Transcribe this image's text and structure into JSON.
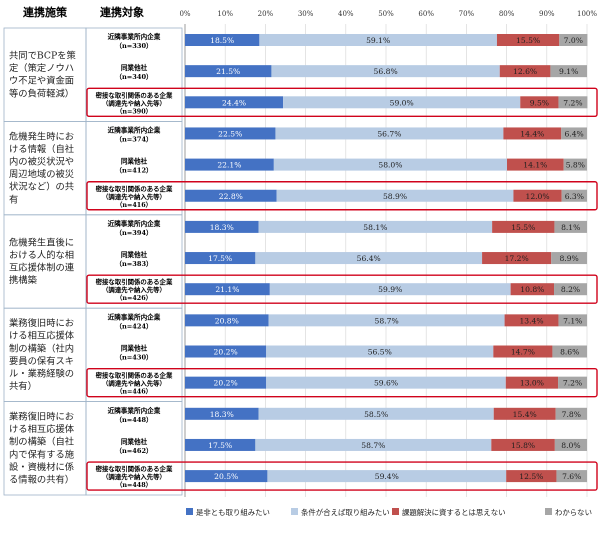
{
  "chart_data": {
    "type": "bar",
    "stacked": true,
    "orientation": "horizontal",
    "header": {
      "col1": "連携施策",
      "col2": "連携対象"
    },
    "xlim": [
      0,
      100
    ],
    "xticks": [
      "0%",
      "10%",
      "20%",
      "30%",
      "40%",
      "50%",
      "60%",
      "70%",
      "80%",
      "90%",
      "100%"
    ],
    "legend": [
      {
        "name": "是非とも取り組みたい",
        "color": "#4472C4"
      },
      {
        "name": "条件が合えば取り組みたい",
        "color": "#B8CCE4"
      },
      {
        "name": "課題解決に資するとは思えない",
        "color": "#C0504D"
      },
      {
        "name": "わからない",
        "color": "#A6A6A6"
      }
    ],
    "groups": [
      {
        "label": "共同でBCPを策定（策定ノウハウ不足や資金面等の負荷軽減）",
        "label_lines": [
          "共同でBCPを策",
          "定（策定ノウハ",
          "ウ不足や資金面",
          "等の負荷軽減）"
        ],
        "rows": [
          {
            "name": "近隣事業所内企業",
            "n": "（n=330）",
            "values": [
              18.5,
              59.1,
              15.5,
              7.0
            ],
            "labels": [
              "18.5%",
              "59.1%",
              "15.5%",
              "7.0%"
            ],
            "highlight": false
          },
          {
            "name": "同業他社",
            "n": "（n=340）",
            "values": [
              21.5,
              56.8,
              12.6,
              9.1
            ],
            "labels": [
              "21.5%",
              "56.8%",
              "12.6%",
              "9.1%"
            ],
            "highlight": false
          },
          {
            "name": "密接な取引関係のある企業",
            "sub": "（調達先や納入先等）",
            "n": "（n=390）",
            "values": [
              24.4,
              59.0,
              9.5,
              7.2
            ],
            "labels": [
              "24.4%",
              "59.0%",
              "9.5%",
              "7.2%"
            ],
            "highlight": true
          }
        ]
      },
      {
        "label": "危機発生時における情報（自社内の被災状況や周辺地域の被災状況など）の共有",
        "label_lines": [
          "危機発生時にお",
          "ける情報（自社",
          "内の被災状況や",
          "周辺地域の被災",
          "状況など）の共",
          "有"
        ],
        "rows": [
          {
            "name": "近隣事業所内企業",
            "n": "（n=374）",
            "values": [
              22.5,
              56.7,
              14.4,
              6.4
            ],
            "labels": [
              "22.5%",
              "56.7%",
              "14.4%",
              "6.4%"
            ],
            "highlight": false
          },
          {
            "name": "同業他社",
            "n": "（n=412）",
            "values": [
              22.1,
              58.0,
              14.1,
              5.8
            ],
            "labels": [
              "22.1%",
              "58.0%",
              "14.1%",
              "5.8%"
            ],
            "highlight": false
          },
          {
            "name": "密接な取引関係のある企業",
            "sub": "（調達先や納入先等）",
            "n": "（n=416）",
            "values": [
              22.8,
              58.9,
              12.0,
              6.3
            ],
            "labels": [
              "22.8%",
              "58.9%",
              "12.0%",
              "6.3%"
            ],
            "highlight": true
          }
        ]
      },
      {
        "label": "危機発生直後における人的な相互応援体制の連携構築",
        "label_lines": [
          "危機発生直後に",
          "おける人的な相",
          "互応援体制の連",
          "携構築"
        ],
        "rows": [
          {
            "name": "近隣事業所内企業",
            "n": "（n=394）",
            "values": [
              18.3,
              58.1,
              15.5,
              8.1
            ],
            "labels": [
              "18.3%",
              "58.1%",
              "15.5%",
              "8.1%"
            ],
            "highlight": false
          },
          {
            "name": "同業他社",
            "n": "（n=383）",
            "values": [
              17.5,
              56.4,
              17.2,
              8.9
            ],
            "labels": [
              "17.5%",
              "56.4%",
              "17.2%",
              "8.9%"
            ],
            "highlight": false
          },
          {
            "name": "密接な取引関係のある企業",
            "sub": "（調達先や納入先等）",
            "n": "（n=426）",
            "values": [
              21.1,
              59.9,
              10.8,
              8.2
            ],
            "labels": [
              "21.1%",
              "59.9%",
              "10.8%",
              "8.2%"
            ],
            "highlight": true
          }
        ]
      },
      {
        "label": "業務復旧時における相互応援体制の構築（社内要員の保有スキル・業務経験の共有）",
        "label_lines": [
          "業務復旧時にお",
          "ける相互応援体",
          "制の構築（社内",
          "要員の保有スキ",
          "ル・業務経験の",
          "共有）"
        ],
        "rows": [
          {
            "name": "近隣事業所内企業",
            "n": "（n=424）",
            "values": [
              20.8,
              58.7,
              13.4,
              7.1
            ],
            "labels": [
              "20.8%",
              "58.7%",
              "13.4%",
              "7.1%"
            ],
            "highlight": false
          },
          {
            "name": "同業他社",
            "n": "（n=430）",
            "values": [
              20.2,
              56.5,
              14.7,
              8.6
            ],
            "labels": [
              "20.2%",
              "56.5%",
              "14.7%",
              "8.6%"
            ],
            "highlight": false
          },
          {
            "name": "密接な取引関係のある企業",
            "sub": "（調達先や納入先等）",
            "n": "（n=446）",
            "values": [
              20.2,
              59.6,
              13.0,
              7.2
            ],
            "labels": [
              "20.2%",
              "59.6%",
              "13.0%",
              "7.2%"
            ],
            "highlight": true
          }
        ]
      },
      {
        "label": "業務復旧時における相互応援体制の構築（自社内で保有する施設・資機材に係る情報の共有）",
        "label_lines": [
          "業務復旧時にお",
          "ける相互応援体",
          "制の構築（自社",
          "内で保有する施",
          "設・資機材に係",
          "る情報の共有）"
        ],
        "rows": [
          {
            "name": "近隣事業所内企業",
            "n": "（n=448）",
            "values": [
              18.3,
              58.5,
              15.4,
              7.8
            ],
            "labels": [
              "18.3%",
              "58.5%",
              "15.4%",
              "7.8%"
            ],
            "highlight": false
          },
          {
            "name": "同業他社",
            "n": "（n=462）",
            "values": [
              17.5,
              58.7,
              15.8,
              8.0
            ],
            "labels": [
              "17.5%",
              "58.7%",
              "15.8%",
              "8.0%"
            ],
            "highlight": false
          },
          {
            "name": "密接な取引関係のある企業",
            "sub": "（調達先や納入先等）",
            "n": "（n=448）",
            "values": [
              20.5,
              59.4,
              12.5,
              7.6
            ],
            "labels": [
              "20.5%",
              "59.4%",
              "12.5%",
              "7.6%"
            ],
            "highlight": true
          }
        ]
      }
    ]
  }
}
